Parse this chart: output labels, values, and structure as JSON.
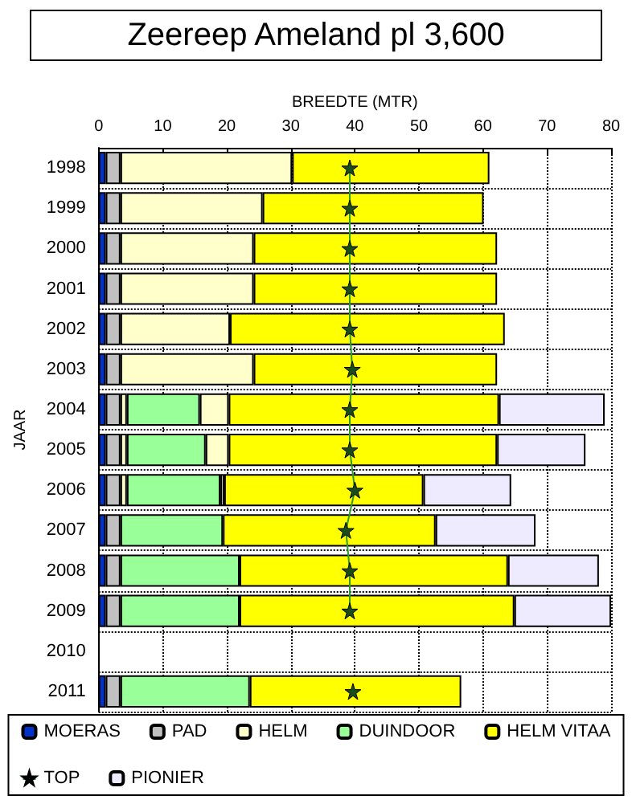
{
  "chart_data": {
    "type": "bar",
    "orientation": "horizontal",
    "stacked": true,
    "title": "Zeereep Ameland pl 3,600",
    "xlabel": "BREEDTE (MTR)",
    "ylabel": "JAAR",
    "categories": [
      "1998",
      "1999",
      "2000",
      "2001",
      "2002",
      "2003",
      "2004",
      "2005",
      "2006",
      "2007",
      "2008",
      "2009",
      "2010",
      "2011"
    ],
    "series": [
      {
        "name": "MOERAS",
        "color": "#0033cc",
        "values": [
          1.1,
          1.1,
          1.1,
          1.1,
          1.1,
          1.1,
          1.1,
          1.1,
          1.1,
          1.1,
          1.1,
          1.1,
          null,
          1.1
        ]
      },
      {
        "name": "PAD",
        "color": "#c0c0c0",
        "values": [
          2.3,
          2.3,
          2.3,
          2.3,
          2.3,
          2.3,
          2.3,
          2.3,
          2.3,
          2.3,
          2.3,
          2.3,
          null,
          2.3
        ]
      },
      {
        "name": "HELM",
        "color": "#ffffcc",
        "values": [
          26.8,
          22.2,
          20.8,
          20.8,
          17.1,
          20.8,
          1.0,
          1.0,
          1.0,
          null,
          null,
          null,
          null,
          null
        ]
      },
      {
        "name": "DUINDOOR",
        "color": "#99ff99",
        "values": [
          null,
          null,
          null,
          null,
          null,
          null,
          11.4,
          12.3,
          14.6,
          16.0,
          18.6,
          18.6,
          null,
          20.2
        ]
      },
      {
        "color": "#ffffcc",
        "values": [
          null,
          null,
          null,
          null,
          null,
          null,
          4.5,
          3.6,
          0.6,
          null,
          null,
          null,
          null,
          null
        ]
      },
      {
        "name": "HELM VITAA",
        "color": "#ffff00",
        "values": [
          30.8,
          34.5,
          38.0,
          38.0,
          42.9,
          38.0,
          42.2,
          41.9,
          31.1,
          33.2,
          41.9,
          42.9,
          null,
          33.0
        ]
      },
      {
        "name": "TOP",
        "type": "line",
        "color": "#1a4d1a",
        "marker": "star",
        "values": [
          39.2,
          39.2,
          39.2,
          39.2,
          39.2,
          39.6,
          39.2,
          39.2,
          40.0,
          38.6,
          39.2,
          39.2,
          null,
          39.7
        ]
      },
      {
        "name": "PIONIER",
        "color": "#eeeaff",
        "values": [
          null,
          null,
          null,
          null,
          null,
          null,
          16.5,
          13.8,
          13.7,
          15.6,
          14.2,
          15.1,
          null,
          null
        ]
      }
    ],
    "xlim": [
      0,
      80
    ],
    "xticks": [
      0,
      10,
      20,
      30,
      40,
      50,
      60,
      70,
      80
    ],
    "grid": true,
    "legend": "bottom"
  }
}
